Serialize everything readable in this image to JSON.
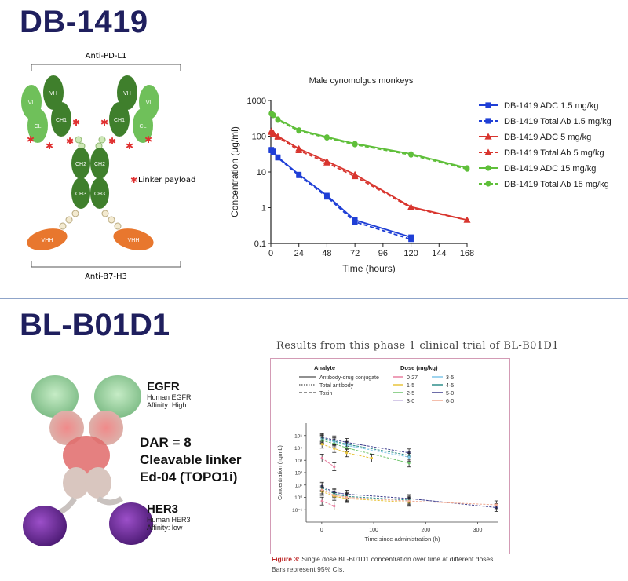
{
  "top": {
    "title": "DB-1419",
    "diagram": {
      "top_label": "Anti-PD-L1",
      "bottom_label": "Anti-B7-H3",
      "legend": "Linker payload",
      "domains": {
        "vl": "VL",
        "vh": "VH",
        "cl": "CL",
        "ch1": "CH1",
        "ch2": "CH2",
        "ch3": "CH3",
        "vhh": "VHH"
      }
    }
  },
  "bottom": {
    "title": "BL-B01D1",
    "egfr": {
      "title": "EGFR",
      "line1": "Human EGFR",
      "line2": "Affinity: High"
    },
    "her3": {
      "title": "HER3",
      "line1": "Human HER3",
      "line2": "Affinity: low"
    },
    "dar_lines": [
      "DAR = 8",
      "Cleavable linker",
      "Ed-04 (TOPO1i)"
    ],
    "trial_header": "Results from this phase 1 clinical trial of BL-B01D1",
    "caption_bold": "Figure 3:",
    "caption_text": "Single dose BL-B01D1 concentration over time at different doses",
    "caption_sub": "Bars represent 95% CIs."
  },
  "colors": {
    "title": "#1f1f5e",
    "blue": "#1f3fd6",
    "red": "#d8352e",
    "green": "#5fbf3a",
    "antibody_green": "#3f7f2c",
    "vhh_orange": "#e8772e"
  },
  "chart_data": [
    {
      "type": "line",
      "title": "Male cynomolgus monkeys",
      "xlabel": "Time (hours)",
      "ylabel": "Concentration (µg/ml)",
      "yscale": "log",
      "xlim": [
        0,
        168
      ],
      "ylim": [
        0.1,
        1000
      ],
      "x_ticks": [
        0,
        24,
        48,
        72,
        96,
        120,
        144,
        168
      ],
      "y_ticks": [
        {
          "v": 0.1,
          "label": "0.1"
        },
        {
          "v": 1,
          "label": "1"
        },
        {
          "v": 10,
          "label": "10"
        },
        {
          "v": 100,
          "label": "100"
        },
        {
          "v": 1000,
          "label": "1000"
        }
      ],
      "legend_position": "right",
      "series": [
        {
          "name": "DB-1419 ADC 1.5 mg/kg",
          "color": "#1f3fd6",
          "dash": false,
          "marker": "square",
          "x": [
            0.5,
            2,
            6,
            24,
            48,
            72,
            120
          ],
          "y": [
            42,
            38,
            26,
            8.5,
            2.2,
            0.45,
            0.15
          ]
        },
        {
          "name": "DB-1419 Total Ab 1.5 mg/kg",
          "color": "#1f3fd6",
          "dash": true,
          "marker": "square",
          "x": [
            0.5,
            2,
            6,
            24,
            48,
            72,
            120
          ],
          "y": [
            40,
            36,
            25,
            8.0,
            2.0,
            0.4,
            0.13
          ]
        },
        {
          "name": "DB-1419 ADC 5 mg/kg",
          "color": "#d8352e",
          "dash": false,
          "marker": "triangle",
          "x": [
            0.5,
            2,
            6,
            24,
            48,
            72,
            120,
            168
          ],
          "y": [
            140,
            125,
            100,
            45,
            20,
            8.5,
            1.05,
            0.45
          ]
        },
        {
          "name": "DB-1419 Total Ab 5 mg/kg",
          "color": "#d8352e",
          "dash": true,
          "marker": "triangle",
          "x": [
            0.5,
            2,
            6,
            24,
            48,
            72,
            120,
            168
          ],
          "y": [
            130,
            115,
            95,
            40,
            18,
            7.5,
            1.0,
            0.45
          ]
        },
        {
          "name": "DB-1419 ADC 15 mg/kg",
          "color": "#5fbf3a",
          "dash": false,
          "marker": "circle",
          "x": [
            0.5,
            2,
            6,
            24,
            48,
            72,
            120,
            168
          ],
          "y": [
            440,
            400,
            300,
            150,
            95,
            62,
            32,
            13
          ]
        },
        {
          "name": "DB-1419 Total Ab 15 mg/kg",
          "color": "#5fbf3a",
          "dash": true,
          "marker": "circle",
          "x": [
            0.5,
            2,
            6,
            24,
            48,
            72,
            120,
            168
          ],
          "y": [
            420,
            380,
            280,
            140,
            90,
            58,
            30,
            12
          ]
        }
      ]
    },
    {
      "type": "line",
      "xlabel": "Time since administration (h)",
      "ylabel": "Concentration (ng/mL)",
      "yscale": "log",
      "xlim": [
        -30,
        340
      ],
      "ylim": [
        0.01,
        1000000
      ],
      "x_ticks": [
        0,
        100,
        200,
        300
      ],
      "y_ticks": [
        {
          "v": 0.1,
          "label": "10⁻¹"
        },
        {
          "v": 1,
          "label": "10⁰"
        },
        {
          "v": 10,
          "label": "10¹"
        },
        {
          "v": 100,
          "label": "10²"
        },
        {
          "v": 1000,
          "label": "10³"
        },
        {
          "v": 10000,
          "label": "10⁴"
        },
        {
          "v": 100000,
          "label": "10⁵"
        }
      ],
      "legend": {
        "analyte_title": "Analyte",
        "analytes": [
          {
            "label": "Antibody-drug conjugate",
            "dash": "solid"
          },
          {
            "label": "Total antibody",
            "dash": "dotted"
          },
          {
            "label": "Toxin",
            "dash": "dashed"
          }
        ],
        "dose_title": "Dose (mg/kg)",
        "doses": [
          {
            "label": "0·27",
            "color": "#e87fa0"
          },
          {
            "label": "1·5",
            "color": "#e8c43c"
          },
          {
            "label": "2·5",
            "color": "#6dc36a"
          },
          {
            "label": "3·0",
            "color": "#c7b8e0"
          },
          {
            "label": "3·5",
            "color": "#7fc6e8"
          },
          {
            "label": "4·5",
            "color": "#2f8f8a"
          },
          {
            "label": "5·0",
            "color": "#3c3c8c"
          },
          {
            "label": "6·0",
            "color": "#f0a890"
          }
        ]
      },
      "series": [
        {
          "color": "#3c3c8c",
          "x": [
            0.5,
            24,
            48,
            168
          ],
          "y": [
            70000,
            45000,
            28000,
            4000
          ]
        },
        {
          "color": "#2f8f8a",
          "x": [
            0.5,
            24,
            48,
            168
          ],
          "y": [
            60000,
            35000,
            20000,
            2500
          ]
        },
        {
          "color": "#7fc6e8",
          "x": [
            0.5,
            24,
            48,
            168
          ],
          "y": [
            50000,
            30000,
            16000,
            1800
          ]
        },
        {
          "color": "#6dc36a",
          "x": [
            0.5,
            24,
            48,
            168
          ],
          "y": [
            40000,
            22000,
            10000,
            600
          ]
        },
        {
          "color": "#e8c43c",
          "x": [
            0.5,
            24,
            48,
            96
          ],
          "y": [
            20000,
            9000,
            4000,
            1500
          ]
        },
        {
          "color": "#e87fa0",
          "x": [
            0.5,
            24
          ],
          "y": [
            1500,
            300
          ]
        },
        {
          "color": "#3c3c8c",
          "x": [
            0.5,
            24,
            48,
            168,
            336
          ],
          "y": [
            8,
            2.5,
            1.8,
            0.8,
            0.15
          ]
        },
        {
          "color": "#2f8f8a",
          "x": [
            0.5,
            24,
            48,
            168
          ],
          "y": [
            6,
            2.0,
            1.2,
            0.6
          ]
        },
        {
          "color": "#e8c43c",
          "x": [
            0.5,
            24,
            48,
            168
          ],
          "y": [
            3,
            1.2,
            0.8,
            0.4
          ]
        },
        {
          "color": "#f0a890",
          "x": [
            0.5,
            24,
            48,
            168,
            336
          ],
          "y": [
            4,
            1.5,
            1.0,
            0.5,
            0.25
          ]
        },
        {
          "color": "#e87fa0",
          "x": [
            0.5,
            24
          ],
          "y": [
            0.5,
            0.2
          ]
        }
      ]
    }
  ]
}
